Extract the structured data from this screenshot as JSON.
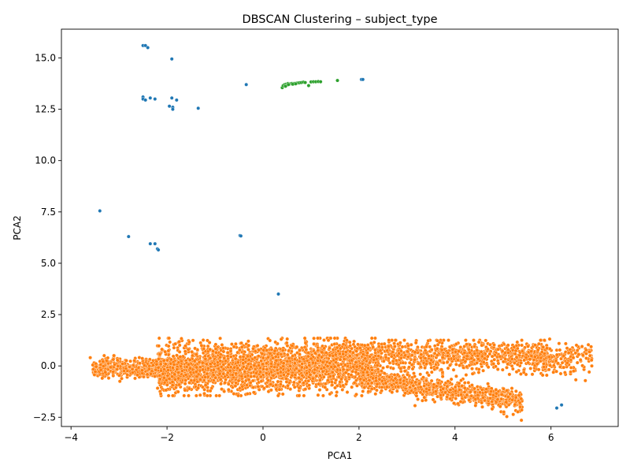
{
  "chart_data": {
    "type": "scatter",
    "title": "DBSCAN Clustering – subject_type",
    "xlabel": "PCA1",
    "ylabel": "PCA2",
    "xlim": [
      -4.2,
      7.4
    ],
    "ylim": [
      -2.95,
      16.4
    ],
    "xticks": [
      -4,
      -2,
      0,
      2,
      4,
      6
    ],
    "yticks": [
      -2.5,
      0.0,
      2.5,
      5.0,
      7.5,
      10.0,
      12.5,
      15.0
    ],
    "ytick_labels": [
      "−2.5",
      "0.0",
      "2.5",
      "5.0",
      "7.5",
      "10.0",
      "12.5",
      "15.0"
    ],
    "xtick_labels": [
      "−4",
      "−2",
      "0",
      "2",
      "4",
      "6"
    ],
    "grid": false,
    "legend": "none",
    "series": [
      {
        "color": "#1f77b4",
        "points": [
          [
            -2.5,
            15.6
          ],
          [
            -2.45,
            15.6
          ],
          [
            -2.4,
            15.5
          ],
          [
            -1.9,
            14.95
          ],
          [
            -0.35,
            13.7
          ],
          [
            2.05,
            13.95
          ],
          [
            2.08,
            13.95
          ],
          [
            -2.5,
            13.1
          ],
          [
            -2.5,
            13.0
          ],
          [
            -2.45,
            12.95
          ],
          [
            -2.35,
            13.05
          ],
          [
            -2.25,
            13.0
          ],
          [
            -1.9,
            13.05
          ],
          [
            -1.8,
            12.95
          ],
          [
            -1.95,
            12.65
          ],
          [
            -1.88,
            12.6
          ],
          [
            -1.88,
            12.5
          ],
          [
            -1.35,
            12.55
          ],
          [
            -3.4,
            7.55
          ],
          [
            -2.8,
            6.3
          ],
          [
            -0.48,
            6.35
          ],
          [
            -0.46,
            6.33
          ],
          [
            -2.35,
            5.95
          ],
          [
            -2.25,
            5.95
          ],
          [
            -2.2,
            5.7
          ],
          [
            -2.18,
            5.65
          ],
          [
            0.32,
            3.5
          ],
          [
            6.12,
            -2.05
          ],
          [
            6.22,
            -1.9
          ]
        ]
      },
      {
        "color": "#2ca02c",
        "points": [
          [
            0.4,
            13.55
          ],
          [
            0.42,
            13.65
          ],
          [
            0.45,
            13.7
          ],
          [
            0.48,
            13.72
          ],
          [
            0.5,
            13.68
          ],
          [
            0.52,
            13.75
          ],
          [
            0.55,
            13.73
          ],
          [
            0.58,
            13.74
          ],
          [
            0.6,
            13.76
          ],
          [
            0.63,
            13.75
          ],
          [
            0.66,
            13.76
          ],
          [
            0.7,
            13.77
          ],
          [
            0.73,
            13.78
          ],
          [
            0.76,
            13.79
          ],
          [
            0.8,
            13.8
          ],
          [
            0.84,
            13.82
          ],
          [
            0.88,
            13.8
          ],
          [
            0.95,
            13.65
          ],
          [
            1.0,
            13.83
          ],
          [
            1.05,
            13.84
          ],
          [
            1.1,
            13.84
          ],
          [
            1.15,
            13.85
          ],
          [
            1.2,
            13.84
          ],
          [
            1.55,
            13.9
          ],
          [
            0.47,
            13.62
          ],
          [
            0.53,
            13.7
          ],
          [
            0.62,
            13.72
          ],
          [
            0.68,
            13.74
          ]
        ]
      },
      {
        "color": "#ff7f0e",
        "cloud": {
          "count": 5200,
          "x_range": [
            -3.6,
            6.85
          ],
          "note_points": [
            [
              -3.6,
              0.4
            ],
            [
              -3.35,
              -0.6
            ],
            [
              6.85,
              0.0
            ],
            [
              5.35,
              -1.8
            ]
          ]
        }
      }
    ]
  }
}
